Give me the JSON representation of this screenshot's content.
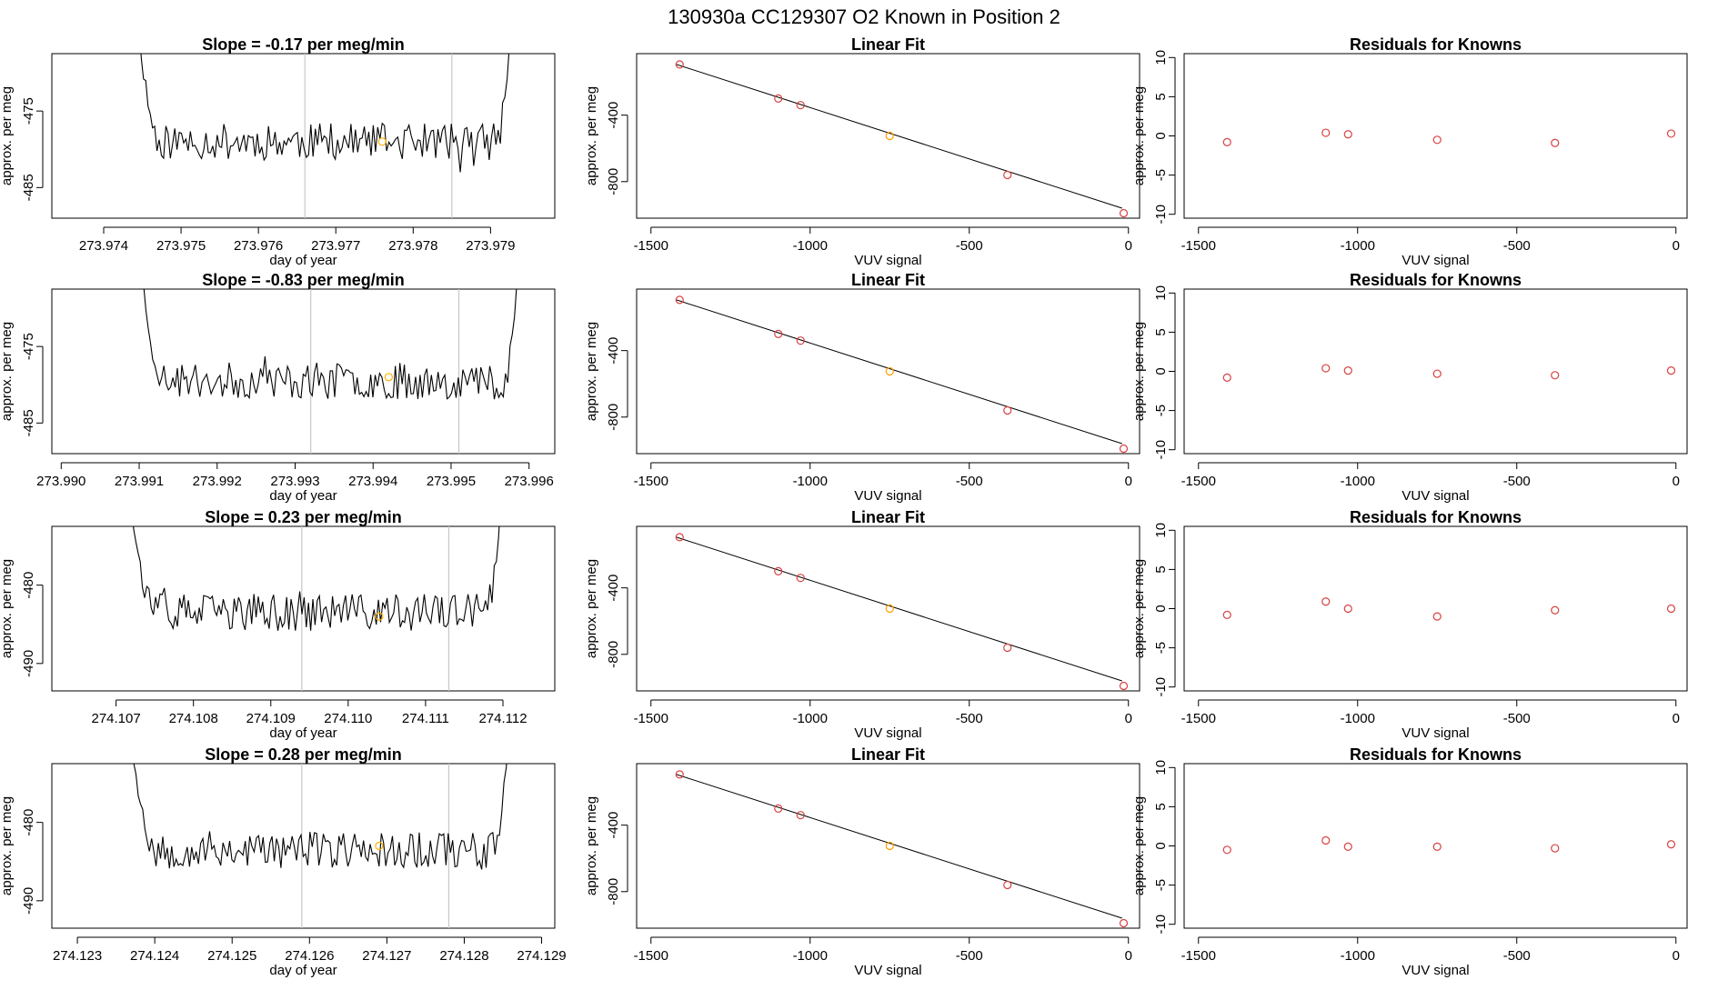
{
  "figure_title": "130930a      CC129307    O2 Known in Position  2",
  "chart_data": [
    {
      "type": "line",
      "panel": "time-series",
      "title": "Slope =  -0.17  per meg/min",
      "xlabel": "day of year",
      "ylabel": "approx. per meg",
      "xlim": [
        273.97333,
        273.97983
      ],
      "xticks": [
        273.974,
        273.975,
        273.976,
        273.977,
        273.978,
        273.979
      ],
      "xtick_labels": [
        "273.974",
        "273.975",
        "273.976",
        "273.977",
        "273.978",
        "273.979"
      ],
      "ylim": [
        -489,
        -467.5
      ],
      "yticks": [
        -475,
        -485
      ],
      "ytick_labels": [
        "-475",
        "-485"
      ],
      "vlines": [
        273.9766,
        273.9785
      ],
      "marker": {
        "x": 273.9776,
        "y": -479.0,
        "color": "#ffb000"
      },
      "trace": {
        "x_start": 273.9744,
        "x_end": 273.9793,
        "baseline": -479,
        "noise": 2.4,
        "edge_start_top": -458,
        "edge_end_top": -458,
        "seed": 11
      }
    },
    {
      "type": "scatter",
      "panel": "linear-fit",
      "title": "Linear Fit",
      "xlabel": "VUV signal",
      "ylabel": "approx. per meg",
      "xlim": [
        -1545,
        35
      ],
      "xticks": [
        -1500,
        -1000,
        -500,
        0
      ],
      "xtick_labels": [
        "-1500",
        "-1000",
        "-500",
        "0"
      ],
      "ylim": [
        -1020,
        -30
      ],
      "yticks": [
        -400,
        -800
      ],
      "ytick_labels": [
        "-400",
        "-800"
      ],
      "fit": {
        "x": [
          -1420,
          -20
        ],
        "y": [
          -95,
          -960
        ]
      },
      "points": [
        {
          "x": -1410,
          "y": -95,
          "color": "#d94040"
        },
        {
          "x": -1100,
          "y": -300,
          "color": "#d94040"
        },
        {
          "x": -1030,
          "y": -340,
          "color": "#d94040"
        },
        {
          "x": -750,
          "y": -525,
          "color": "#ffa000"
        },
        {
          "x": -380,
          "y": -760,
          "color": "#d94040"
        },
        {
          "x": -15,
          "y": -990,
          "color": "#d94040"
        }
      ]
    },
    {
      "type": "scatter",
      "panel": "residuals",
      "title": "Residuals for Knowns",
      "xlabel": "VUV signal",
      "ylabel": "approx. per meg",
      "xlim": [
        -1545,
        35
      ],
      "xticks": [
        -1500,
        -1000,
        -500,
        0
      ],
      "xtick_labels": [
        "-1500",
        "-1000",
        "-500",
        "0"
      ],
      "ylim": [
        -10.5,
        10.5
      ],
      "yticks": [
        10,
        5,
        0,
        -5,
        -10
      ],
      "ytick_labels": [
        "10",
        "5",
        "0",
        "-5",
        "-10"
      ],
      "points": [
        {
          "x": -1410,
          "y": -0.8,
          "color": "#d94040"
        },
        {
          "x": -1100,
          "y": 0.4,
          "color": "#d94040"
        },
        {
          "x": -1030,
          "y": 0.2,
          "color": "#d94040"
        },
        {
          "x": -750,
          "y": -0.5,
          "color": "#d94040"
        },
        {
          "x": -380,
          "y": -0.9,
          "color": "#d94040"
        },
        {
          "x": -15,
          "y": 0.3,
          "color": "#d94040"
        }
      ]
    },
    {
      "type": "line",
      "panel": "time-series",
      "title": "Slope =  -0.83  per meg/min",
      "xlabel": "day of year",
      "ylabel": "approx. per meg",
      "xlim": [
        273.98988,
        273.99633
      ],
      "xticks": [
        273.99,
        273.991,
        273.992,
        273.993,
        273.994,
        273.995,
        273.996
      ],
      "xtick_labels": [
        "273.990",
        "273.991",
        "273.992",
        "273.993",
        "273.994",
        "273.995",
        "273.996"
      ],
      "ylim": [
        -489,
        -467.5
      ],
      "yticks": [
        -475,
        -485
      ],
      "ytick_labels": [
        "-475",
        "-485"
      ],
      "vlines": [
        273.9932,
        273.9951
      ],
      "marker": {
        "x": 273.9942,
        "y": -479.0,
        "color": "#ffb000"
      },
      "trace": {
        "x_start": 273.991,
        "x_end": 273.9959,
        "baseline": -479.5,
        "noise": 2.4,
        "edge_start_top": -462,
        "edge_end_top": -458,
        "seed": 23
      }
    },
    {
      "type": "scatter",
      "panel": "linear-fit",
      "title": "Linear Fit",
      "xlabel": "VUV signal",
      "ylabel": "approx. per meg",
      "xlim": [
        -1545,
        35
      ],
      "xticks": [
        -1500,
        -1000,
        -500,
        0
      ],
      "xtick_labels": [
        "-1500",
        "-1000",
        "-500",
        "0"
      ],
      "ylim": [
        -1020,
        -30
      ],
      "yticks": [
        -400,
        -800
      ],
      "ytick_labels": [
        "-400",
        "-800"
      ],
      "fit": {
        "x": [
          -1420,
          -20
        ],
        "y": [
          -95,
          -960
        ]
      },
      "points": [
        {
          "x": -1410,
          "y": -95,
          "color": "#d94040"
        },
        {
          "x": -1100,
          "y": -300,
          "color": "#d94040"
        },
        {
          "x": -1030,
          "y": -340,
          "color": "#d94040"
        },
        {
          "x": -750,
          "y": -525,
          "color": "#ffa000"
        },
        {
          "x": -380,
          "y": -760,
          "color": "#d94040"
        },
        {
          "x": -15,
          "y": -990,
          "color": "#d94040"
        }
      ]
    },
    {
      "type": "scatter",
      "panel": "residuals",
      "title": "Residuals for Knowns",
      "xlabel": "VUV signal",
      "ylabel": "approx. per meg",
      "xlim": [
        -1545,
        35
      ],
      "xticks": [
        -1500,
        -1000,
        -500,
        0
      ],
      "xtick_labels": [
        "-1500",
        "-1000",
        "-500",
        "0"
      ],
      "ylim": [
        -10.5,
        10.5
      ],
      "yticks": [
        10,
        5,
        0,
        -5,
        -10
      ],
      "ytick_labels": [
        "10",
        "5",
        "0",
        "-5",
        "-10"
      ],
      "points": [
        {
          "x": -1410,
          "y": -0.8,
          "color": "#d94040"
        },
        {
          "x": -1100,
          "y": 0.4,
          "color": "#d94040"
        },
        {
          "x": -1030,
          "y": 0.1,
          "color": "#d94040"
        },
        {
          "x": -750,
          "y": -0.3,
          "color": "#d94040"
        },
        {
          "x": -380,
          "y": -0.5,
          "color": "#d94040"
        },
        {
          "x": -15,
          "y": 0.1,
          "color": "#d94040"
        }
      ]
    },
    {
      "type": "line",
      "panel": "time-series",
      "title": "Slope =  0.23  per meg/min",
      "xlabel": "day of year",
      "ylabel": "approx. per meg",
      "xlim": [
        274.10617,
        274.11267
      ],
      "xticks": [
        274.107,
        274.108,
        274.109,
        274.11,
        274.111,
        274.112
      ],
      "xtick_labels": [
        "274.107",
        "274.108",
        "274.109",
        "274.110",
        "274.111",
        "274.112"
      ],
      "ylim": [
        -493.5,
        -472.5
      ],
      "yticks": [
        -480,
        -490
      ],
      "ytick_labels": [
        "-480",
        "-490"
      ],
      "vlines": [
        274.1094,
        274.1113
      ],
      "marker": {
        "x": 274.1104,
        "y": -484.0,
        "color": "#ffb000"
      },
      "trace": {
        "x_start": 274.1072,
        "x_end": 274.112,
        "baseline": -483.5,
        "noise": 2.4,
        "edge_start_top": -470,
        "edge_end_top": -466,
        "seed": 37
      }
    },
    {
      "type": "scatter",
      "panel": "linear-fit",
      "title": "Linear Fit",
      "xlabel": "VUV signal",
      "ylabel": "approx. per meg",
      "xlim": [
        -1545,
        35
      ],
      "xticks": [
        -1500,
        -1000,
        -500,
        0
      ],
      "xtick_labels": [
        "-1500",
        "-1000",
        "-500",
        "0"
      ],
      "ylim": [
        -1020,
        -30
      ],
      "yticks": [
        -400,
        -800
      ],
      "ytick_labels": [
        "-400",
        "-800"
      ],
      "fit": {
        "x": [
          -1420,
          -20
        ],
        "y": [
          -95,
          -960
        ]
      },
      "points": [
        {
          "x": -1410,
          "y": -95,
          "color": "#d94040"
        },
        {
          "x": -1100,
          "y": -300,
          "color": "#d94040"
        },
        {
          "x": -1030,
          "y": -340,
          "color": "#d94040"
        },
        {
          "x": -750,
          "y": -525,
          "color": "#ffa000"
        },
        {
          "x": -380,
          "y": -760,
          "color": "#d94040"
        },
        {
          "x": -15,
          "y": -990,
          "color": "#d94040"
        }
      ]
    },
    {
      "type": "scatter",
      "panel": "residuals",
      "title": "Residuals for Knowns",
      "xlabel": "VUV signal",
      "ylabel": "approx. per meg",
      "xlim": [
        -1545,
        35
      ],
      "xticks": [
        -1500,
        -1000,
        -500,
        0
      ],
      "xtick_labels": [
        "-1500",
        "-1000",
        "-500",
        "0"
      ],
      "ylim": [
        -10.5,
        10.5
      ],
      "yticks": [
        10,
        5,
        0,
        -5,
        -10
      ],
      "ytick_labels": [
        "10",
        "5",
        "0",
        "-5",
        "-10"
      ],
      "points": [
        {
          "x": -1410,
          "y": -0.8,
          "color": "#d94040"
        },
        {
          "x": -1100,
          "y": 0.9,
          "color": "#d94040"
        },
        {
          "x": -1030,
          "y": 0.0,
          "color": "#d94040"
        },
        {
          "x": -750,
          "y": -1.0,
          "color": "#d94040"
        },
        {
          "x": -380,
          "y": -0.2,
          "color": "#d94040"
        },
        {
          "x": -15,
          "y": 0.0,
          "color": "#d94040"
        }
      ]
    },
    {
      "type": "line",
      "panel": "time-series",
      "title": "Slope =  0.28  per meg/min",
      "xlabel": "day of year",
      "ylabel": "approx. per meg",
      "xlim": [
        274.12267,
        274.12917
      ],
      "xticks": [
        274.123,
        274.124,
        274.125,
        274.126,
        274.127,
        274.128,
        274.129
      ],
      "xtick_labels": [
        "274.123",
        "274.124",
        "274.125",
        "274.126",
        "274.127",
        "274.128",
        "274.129"
      ],
      "ylim": [
        -493.5,
        -472.5
      ],
      "yticks": [
        -480,
        -490
      ],
      "ytick_labels": [
        "-480",
        "-490"
      ],
      "vlines": [
        274.1259,
        274.1278
      ],
      "marker": {
        "x": 274.1269,
        "y": -483.0,
        "color": "#ffb000"
      },
      "trace": {
        "x_start": 274.1237,
        "x_end": 274.1286,
        "baseline": -483.5,
        "noise": 2.4,
        "edge_start_top": -470,
        "edge_end_top": -464,
        "seed": 53
      }
    },
    {
      "type": "scatter",
      "panel": "linear-fit",
      "title": "Linear Fit",
      "xlabel": "VUV signal",
      "ylabel": "approx. per meg",
      "xlim": [
        -1545,
        35
      ],
      "xticks": [
        -1500,
        -1000,
        -500,
        0
      ],
      "xtick_labels": [
        "-1500",
        "-1000",
        "-500",
        "0"
      ],
      "ylim": [
        -1020,
        -30
      ],
      "yticks": [
        -400,
        -800
      ],
      "ytick_labels": [
        "-400",
        "-800"
      ],
      "fit": {
        "x": [
          -1420,
          -20
        ],
        "y": [
          -95,
          -960
        ]
      },
      "points": [
        {
          "x": -1410,
          "y": -95,
          "color": "#d94040"
        },
        {
          "x": -1100,
          "y": -300,
          "color": "#d94040"
        },
        {
          "x": -1030,
          "y": -340,
          "color": "#d94040"
        },
        {
          "x": -750,
          "y": -525,
          "color": "#ffa000"
        },
        {
          "x": -380,
          "y": -760,
          "color": "#d94040"
        },
        {
          "x": -15,
          "y": -990,
          "color": "#d94040"
        }
      ]
    },
    {
      "type": "scatter",
      "panel": "residuals",
      "title": "Residuals for Knowns",
      "xlabel": "VUV signal",
      "ylabel": "approx. per meg",
      "xlim": [
        -1545,
        35
      ],
      "xticks": [
        -1500,
        -1000,
        -500,
        0
      ],
      "xtick_labels": [
        "-1500",
        "-1000",
        "-500",
        "0"
      ],
      "ylim": [
        -10.5,
        10.5
      ],
      "yticks": [
        10,
        5,
        0,
        -5,
        -10
      ],
      "ytick_labels": [
        "10",
        "5",
        "0",
        "-5",
        "-10"
      ],
      "points": [
        {
          "x": -1410,
          "y": -0.5,
          "color": "#d94040"
        },
        {
          "x": -1100,
          "y": 0.7,
          "color": "#d94040"
        },
        {
          "x": -1030,
          "y": -0.1,
          "color": "#d94040"
        },
        {
          "x": -750,
          "y": -0.1,
          "color": "#d94040"
        },
        {
          "x": -380,
          "y": -0.3,
          "color": "#d94040"
        },
        {
          "x": -15,
          "y": 0.2,
          "color": "#d94040"
        }
      ]
    }
  ]
}
